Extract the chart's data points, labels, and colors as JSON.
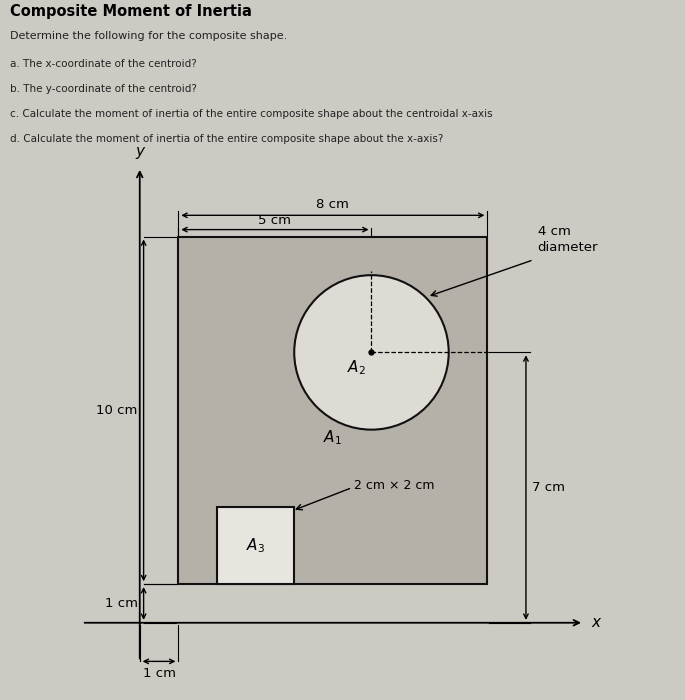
{
  "title": "Composite Moment of Inertia",
  "subtitle": "Determine the following for the composite shape.",
  "questions": [
    "a. The x-coordinate of the centroid?",
    "b. The y-coordinate of the centroid?",
    "c. Calculate the moment of inertia of the entire composite shape about the centroidal x-axis",
    "d. Calculate the moment of inertia of the entire composite shape about the x-axis?"
  ],
  "page_bg": "#cdc9c3",
  "diagram_bg": "#c5c1ba",
  "rect_fill": "#b5b1a8",
  "circle_fill": "#dedad4",
  "sq_fill": "#e8e5df",
  "dim_8cm_label": "8 cm",
  "dim_5cm_label": "5 cm",
  "dim_4cm_label": "4 cm\ndiameter",
  "dim_10cm_label": "10 cm",
  "dim_7cm_label": "7 cm",
  "dim_1cm_left_label": "1 cm",
  "dim_1cm_bot_label": "1 cm",
  "dim_2x2_label": "2 cm × 2 cm",
  "label_A1": "$A_1$",
  "label_A2": "$A_2$",
  "label_A3": "$A_3$"
}
